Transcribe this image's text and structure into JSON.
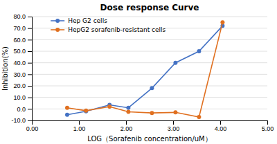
{
  "chart_data": {
    "type": "line",
    "title": "Dose response Curve",
    "xlabel": "LOG（Sorafenib concentration/uM）",
    "ylabel": "Inhibition(%)",
    "x": [
      0.75,
      1.15,
      1.65,
      2.05,
      2.55,
      3.05,
      3.55,
      4.05
    ],
    "series": [
      {
        "name": "Hep G2 cells",
        "color": "#4472C4",
        "marker": "circle",
        "values": [
          -5.0,
          -2.0,
          3.5,
          1.0,
          18.0,
          40.0,
          50.0,
          72.0
        ]
      },
      {
        "name": "HepG2 sorafenib-resistant cells",
        "color": "#E07020",
        "marker": "circle",
        "values": [
          1.0,
          -1.5,
          2.0,
          -2.5,
          -3.5,
          -3.0,
          -7.0,
          75.0
        ]
      }
    ],
    "xlim": [
      0.0,
      5.0
    ],
    "ylim": [
      -10.0,
      80.0
    ],
    "xticks": [
      {
        "value": 0.0,
        "label": "0.00"
      },
      {
        "value": 1.0,
        "label": "1.00"
      },
      {
        "value": 2.0,
        "label": "2.00"
      },
      {
        "value": 3.0,
        "label": "3.00"
      },
      {
        "value": 4.0,
        "label": "4.00"
      },
      {
        "value": 5.0,
        "label": "5.00"
      }
    ],
    "yticks": [
      {
        "value": -10.0,
        "label": "-10.0"
      },
      {
        "value": 0.0,
        "label": "0.0"
      },
      {
        "value": 10.0,
        "label": "10.0"
      },
      {
        "value": 20.0,
        "label": "20.0"
      },
      {
        "value": 30.0,
        "label": "30.0"
      },
      {
        "value": 40.0,
        "label": "40.0"
      },
      {
        "value": 50.0,
        "label": "50.0"
      },
      {
        "value": 60.0,
        "label": "60.0"
      },
      {
        "value": 70.0,
        "label": "70.0"
      },
      {
        "value": 80.0,
        "label": "80.0"
      }
    ],
    "grid": true,
    "legend": "upper left"
  }
}
